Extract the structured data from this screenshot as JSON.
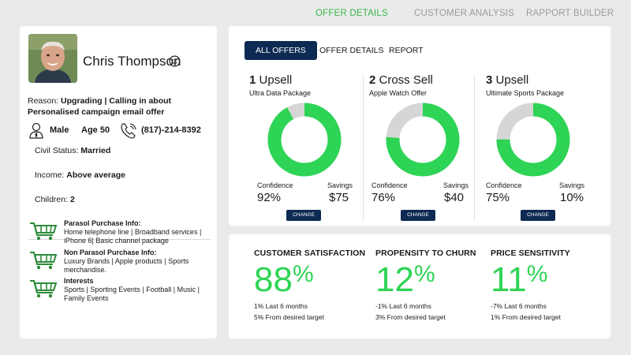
{
  "nav": {
    "offer_details": "OFFER DETAILS",
    "customer_analysis": "CUSTOMER ANALYSIS",
    "rapport_builder": "RAPPORT BUILDER"
  },
  "customer": {
    "name": "Chris Thompson",
    "reason_label": "Reason:",
    "reason_text": "Upgrading | Calling in about Personalised campaign email offer",
    "gender": "Male",
    "age": "Age 50",
    "phone": "(817)-214-8392",
    "civil_label": "Civil Status:",
    "civil_value": "Married",
    "income_label": "Income:",
    "income_value": "Above average",
    "children_label": "Children:",
    "children_value": "2"
  },
  "purchases": [
    {
      "title": "Parasol Purchase Info:",
      "body": "Home telephone line | Broadband services | iPhone 6| Basic channel package"
    },
    {
      "title": "Non Parasol Purchase Info:",
      "body": "Luxury Brands | Apple products | Sports merchandise."
    },
    {
      "title": "Interests",
      "body": "Sports | Sporting Events | Football | Music | Family Events"
    }
  ],
  "tabs": {
    "all_offers": "ALL OFFERS",
    "offer_details": "OFFER DETAILS",
    "report": "REPORT"
  },
  "offers": [
    {
      "num": "1",
      "type": "Upsell",
      "product": "Ultra Data Package",
      "confidence_label": "Confidence",
      "confidence": "92%",
      "confidence_pct": 92,
      "savings_label": "Savings",
      "savings": "$75",
      "change": "CHANGE"
    },
    {
      "num": "2",
      "type": "Cross Sell",
      "product": "Apple Watch Offer",
      "confidence_label": "Confidence",
      "confidence": "76%",
      "confidence_pct": 76,
      "savings_label": "Savings",
      "savings": "$40",
      "change": "CHANGE"
    },
    {
      "num": "3",
      "type": "Upsell",
      "product": "Ultimate Sports Package",
      "confidence_label": "Confidence",
      "confidence": "75%",
      "confidence_pct": 75,
      "savings_label": "Savings",
      "savings": "10%",
      "change": "CHANGE"
    }
  ],
  "metrics": [
    {
      "title": "CUSTOMER SATISFACTION",
      "value": "88",
      "pct": "%",
      "line1": "1% Last 6 months",
      "line2": "5% From desired target"
    },
    {
      "title": "PROPENSITY TO CHURN",
      "value": "12",
      "pct": "%",
      "line1": "-1% Last 6 months",
      "line2": "3% From desired target"
    },
    {
      "title": "PRICE SENSITIVITY",
      "value": "11",
      "pct": "%",
      "line1": "-7% Last 6 months",
      "line2": "1% From desired target"
    }
  ],
  "colors": {
    "accent_green": "#2ed455",
    "nav_green": "#3bb54a",
    "navy": "#0d2a52",
    "donut_track": "#d6d6d6",
    "cart_green": "#2e8b3a"
  },
  "icons": {
    "smiley": "smiley-icon",
    "person": "person-icon",
    "phone": "phone-icon",
    "cart": "shopping-cart-icon"
  }
}
